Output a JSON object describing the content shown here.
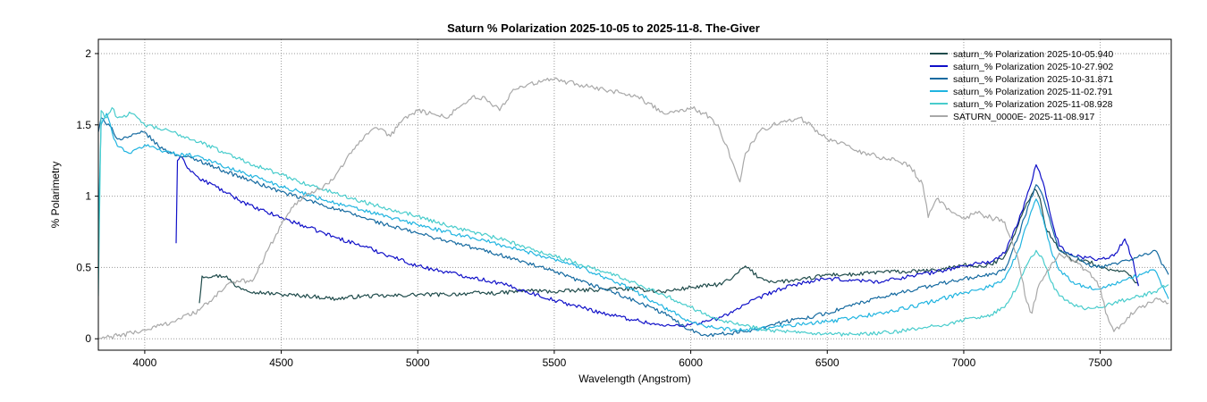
{
  "chart_data": {
    "type": "line",
    "title": "Saturn  % Polarization  2025-10-05  to  2025-11-8.  The-Giver",
    "xlabel": "Wavelength (Angstrom)",
    "ylabel": "% Polarimetry",
    "xlim": [
      3830,
      7760
    ],
    "ylim": [
      -0.08,
      2.1
    ],
    "grid": true,
    "legend_position": "top-right",
    "x_ticks": [
      4000,
      4500,
      5000,
      5500,
      6000,
      6500,
      7000,
      7500
    ],
    "x_tick_labels": [
      "4000",
      "4500",
      "5000",
      "5500",
      "6000",
      "6500",
      "7000",
      "7500"
    ],
    "y_ticks": [
      0,
      0.5,
      1,
      1.5,
      2
    ],
    "y_tick_labels": [
      "0",
      "0.5",
      "1",
      "1.5",
      "2"
    ],
    "series": [
      {
        "name": "saturn_% Polarization  2025-10-05.940",
        "color": "#1f4b4b",
        "x": [
          4200,
          4210,
          4250,
          4300,
          4330,
          4400,
          4500,
          4600,
          4700,
          4800,
          4900,
          5000,
          5100,
          5200,
          5300,
          5400,
          5500,
          5600,
          5700,
          5800,
          5900,
          6000,
          6100,
          6150,
          6200,
          6250,
          6300,
          6400,
          6500,
          6600,
          6700,
          6800,
          6900,
          7000,
          7050,
          7100,
          7150,
          7200,
          7230,
          7260,
          7280,
          7300,
          7350,
          7400,
          7450,
          7500,
          7550,
          7600,
          7640
        ],
        "y": [
          0.25,
          0.44,
          0.44,
          0.44,
          0.37,
          0.33,
          0.31,
          0.3,
          0.28,
          0.3,
          0.3,
          0.31,
          0.31,
          0.32,
          0.32,
          0.34,
          0.33,
          0.34,
          0.35,
          0.35,
          0.33,
          0.36,
          0.38,
          0.42,
          0.51,
          0.43,
          0.4,
          0.41,
          0.45,
          0.45,
          0.47,
          0.47,
          0.48,
          0.52,
          0.5,
          0.52,
          0.58,
          0.8,
          0.95,
          1.05,
          0.98,
          0.78,
          0.62,
          0.55,
          0.55,
          0.5,
          0.48,
          0.46,
          0.38
        ]
      },
      {
        "name": "saturn_% Polarization  2025-10-27.902",
        "color": "#1010c8",
        "x": [
          4115,
          4120,
          4130,
          4150,
          4200,
          4250,
          4300,
          4400,
          4500,
          4600,
          4700,
          4800,
          4900,
          5000,
          5100,
          5200,
          5300,
          5400,
          5500,
          5600,
          5700,
          5800,
          5900,
          6000,
          6050,
          6100,
          6200,
          6300,
          6400,
          6500,
          6600,
          6700,
          6800,
          6900,
          7000,
          7050,
          7100,
          7150,
          7200,
          7240,
          7265,
          7290,
          7320,
          7350,
          7400,
          7450,
          7500,
          7550,
          7590,
          7620,
          7640
        ],
        "y": [
          0.67,
          1.25,
          1.28,
          1.22,
          1.12,
          1.08,
          1.02,
          0.92,
          0.85,
          0.78,
          0.71,
          0.65,
          0.58,
          0.51,
          0.47,
          0.43,
          0.39,
          0.33,
          0.27,
          0.22,
          0.17,
          0.13,
          0.09,
          0.1,
          0.12,
          0.14,
          0.24,
          0.33,
          0.39,
          0.42,
          0.41,
          0.4,
          0.44,
          0.47,
          0.51,
          0.53,
          0.54,
          0.6,
          0.82,
          1.05,
          1.22,
          1.1,
          0.85,
          0.65,
          0.58,
          0.57,
          0.56,
          0.58,
          0.7,
          0.55,
          0.37
        ]
      },
      {
        "name": "saturn_% Polarization  2025-10-31.871",
        "color": "#156aa0",
        "x": [
          3830,
          3840,
          3860,
          3880,
          3900,
          3950,
          4000,
          4050,
          4100,
          4200,
          4300,
          4400,
          4500,
          4600,
          4700,
          4800,
          4900,
          5000,
          5100,
          5200,
          5300,
          5400,
          5500,
          5600,
          5700,
          5800,
          5900,
          6000,
          6050,
          6100,
          6200,
          6300,
          6400,
          6500,
          6600,
          6700,
          6800,
          6900,
          7000,
          7100,
          7150,
          7200,
          7240,
          7265,
          7290,
          7320,
          7350,
          7400,
          7450,
          7500,
          7550,
          7600,
          7650,
          7700,
          7750
        ],
        "y": [
          1.45,
          1.55,
          1.5,
          1.48,
          1.4,
          1.42,
          1.45,
          1.35,
          1.3,
          1.25,
          1.17,
          1.1,
          1.03,
          0.97,
          0.91,
          0.85,
          0.79,
          0.74,
          0.69,
          0.64,
          0.59,
          0.53,
          0.47,
          0.4,
          0.34,
          0.26,
          0.18,
          0.06,
          0.03,
          0.03,
          0.05,
          0.1,
          0.14,
          0.18,
          0.24,
          0.29,
          0.34,
          0.38,
          0.42,
          0.45,
          0.48,
          0.72,
          0.95,
          1.08,
          1.0,
          0.8,
          0.62,
          0.58,
          0.52,
          0.5,
          0.53,
          0.55,
          0.58,
          0.62,
          0.45
        ]
      },
      {
        "name": "saturn_% Polarization  2025-11-02.791",
        "color": "#20b4e0",
        "x": [
          3830,
          3840,
          3860,
          3880,
          3900,
          3950,
          4000,
          4100,
          4200,
          4300,
          4400,
          4500,
          4600,
          4700,
          4800,
          4900,
          5000,
          5100,
          5200,
          5300,
          5400,
          5500,
          5600,
          5700,
          5800,
          5900,
          6000,
          6100,
          6200,
          6300,
          6400,
          6500,
          6600,
          6700,
          6800,
          6900,
          7000,
          7100,
          7150,
          7200,
          7240,
          7265,
          7290,
          7320,
          7350,
          7400,
          7450,
          7500,
          7550,
          7600,
          7650,
          7700,
          7750
        ],
        "y": [
          0.75,
          1.5,
          1.58,
          1.45,
          1.35,
          1.3,
          1.36,
          1.3,
          1.28,
          1.2,
          1.14,
          1.07,
          1.01,
          0.95,
          0.9,
          0.85,
          0.8,
          0.75,
          0.71,
          0.66,
          0.61,
          0.56,
          0.5,
          0.42,
          0.33,
          0.22,
          0.12,
          0.07,
          0.06,
          0.08,
          0.1,
          0.12,
          0.15,
          0.18,
          0.22,
          0.27,
          0.32,
          0.37,
          0.42,
          0.62,
          0.85,
          0.98,
          0.85,
          0.62,
          0.48,
          0.4,
          0.36,
          0.35,
          0.38,
          0.42,
          0.45,
          0.48,
          0.28
        ]
      },
      {
        "name": "saturn_% Polarization  2025-11-08.928",
        "color": "#48cccc",
        "x": [
          3830,
          3840,
          3860,
          3880,
          3900,
          3950,
          4000,
          4100,
          4200,
          4300,
          4400,
          4500,
          4600,
          4700,
          4800,
          4900,
          5000,
          5100,
          5200,
          5300,
          5400,
          5500,
          5600,
          5700,
          5800,
          5900,
          6000,
          6100,
          6200,
          6300,
          6400,
          6500,
          6600,
          6700,
          6800,
          6900,
          7000,
          7100,
          7150,
          7200,
          7240,
          7265,
          7290,
          7320,
          7350,
          7400,
          7450,
          7500,
          7550,
          7600,
          7650,
          7700,
          7750
        ],
        "y": [
          0.3,
          1.6,
          1.55,
          1.62,
          1.55,
          1.58,
          1.5,
          1.45,
          1.38,
          1.3,
          1.22,
          1.15,
          1.08,
          1.02,
          0.96,
          0.91,
          0.86,
          0.8,
          0.75,
          0.7,
          0.64,
          0.58,
          0.52,
          0.46,
          0.39,
          0.31,
          0.22,
          0.14,
          0.09,
          0.06,
          0.04,
          0.03,
          0.03,
          0.04,
          0.06,
          0.09,
          0.13,
          0.17,
          0.22,
          0.38,
          0.55,
          0.62,
          0.56,
          0.4,
          0.3,
          0.24,
          0.21,
          0.22,
          0.25,
          0.28,
          0.3,
          0.33,
          0.38
        ]
      },
      {
        "name": "SATURN_0000E-  2025-11-08.917",
        "color": "#a8a8a8",
        "x": [
          3830,
          3900,
          4000,
          4100,
          4200,
          4250,
          4300,
          4350,
          4400,
          4450,
          4500,
          4550,
          4600,
          4650,
          4700,
          4750,
          4800,
          4850,
          4900,
          4950,
          5000,
          5050,
          5100,
          5150,
          5200,
          5250,
          5300,
          5350,
          5400,
          5450,
          5500,
          5550,
          5600,
          5650,
          5700,
          5750,
          5800,
          5850,
          5900,
          5950,
          6000,
          6050,
          6100,
          6150,
          6180,
          6200,
          6250,
          6300,
          6350,
          6400,
          6450,
          6500,
          6550,
          6600,
          6650,
          6700,
          6750,
          6800,
          6850,
          6870,
          6900,
          6950,
          7000,
          7050,
          7100,
          7150,
          7200,
          7230,
          7250,
          7270,
          7300,
          7350,
          7400,
          7450,
          7500,
          7520,
          7550,
          7600,
          7650,
          7700,
          7750
        ],
        "y": [
          0.0,
          0.02,
          0.06,
          0.12,
          0.2,
          0.28,
          0.38,
          0.4,
          0.42,
          0.62,
          0.8,
          0.95,
          1.02,
          1.05,
          1.15,
          1.3,
          1.4,
          1.48,
          1.42,
          1.55,
          1.6,
          1.58,
          1.55,
          1.62,
          1.7,
          1.68,
          1.6,
          1.75,
          1.78,
          1.8,
          1.82,
          1.8,
          1.78,
          1.75,
          1.74,
          1.72,
          1.7,
          1.65,
          1.58,
          1.6,
          1.62,
          1.58,
          1.5,
          1.25,
          1.1,
          1.3,
          1.45,
          1.5,
          1.52,
          1.55,
          1.48,
          1.4,
          1.38,
          1.32,
          1.3,
          1.26,
          1.25,
          1.22,
          1.08,
          0.85,
          0.98,
          0.9,
          0.85,
          0.88,
          0.85,
          0.82,
          0.55,
          0.26,
          0.18,
          0.35,
          0.45,
          0.6,
          0.55,
          0.48,
          0.36,
          0.18,
          0.05,
          0.15,
          0.22,
          0.28,
          0.25
        ]
      }
    ]
  }
}
